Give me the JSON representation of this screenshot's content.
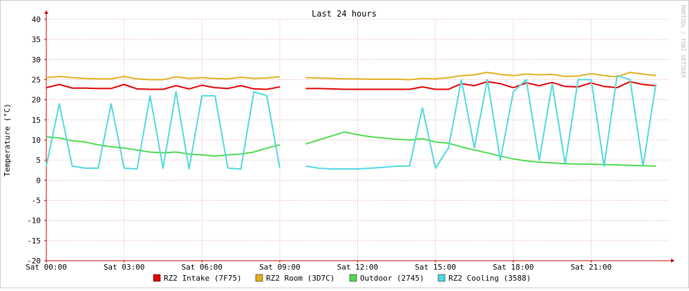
{
  "chart_data": {
    "type": "line",
    "title": "Last 24 hours",
    "y_label": "Temperature (°C)",
    "watermark": "RRDTOOL / TOBI OETIKER",
    "x": [
      0,
      0.5,
      1,
      1.5,
      2,
      2.5,
      3,
      3.5,
      4,
      4.5,
      5,
      5.5,
      6,
      6.5,
      7,
      7.5,
      8,
      8.5,
      9,
      9.5,
      10,
      10.5,
      11,
      11.5,
      12,
      12.5,
      13,
      13.5,
      14,
      14.5,
      15,
      15.5,
      16,
      16.5,
      17,
      17.5,
      18,
      18.5,
      19,
      19.5,
      20,
      20.5,
      21,
      21.5,
      22,
      22.5,
      23,
      23.5
    ],
    "xlim": [
      0,
      24
    ],
    "xticks": [
      {
        "value": 0,
        "label": "Sat 00:00"
      },
      {
        "value": 3,
        "label": "Sat 03:00"
      },
      {
        "value": 6,
        "label": "Sat 06:00"
      },
      {
        "value": 9,
        "label": "Sat 09:00"
      },
      {
        "value": 12,
        "label": "Sat 12:00"
      },
      {
        "value": 15,
        "label": "Sat 15:00"
      },
      {
        "value": 18,
        "label": "Sat 18:00"
      },
      {
        "value": 21,
        "label": "Sat 21:00"
      }
    ],
    "ylim": [
      -20,
      40
    ],
    "yticks": [
      -20,
      -15,
      -10,
      -5,
      0,
      5,
      10,
      15,
      20,
      25,
      30,
      35,
      40
    ],
    "grid": true,
    "series": [
      {
        "name": "RZ2 Intake (7F75)",
        "color": "#e00000",
        "values": [
          23,
          23.8,
          22.9,
          22.9,
          22.8,
          22.8,
          23.8,
          22.7,
          22.6,
          22.6,
          23.5,
          22.7,
          23.6,
          23,
          22.8,
          23.5,
          22.7,
          22.6,
          23.2,
          null,
          22.8,
          22.8,
          22.7,
          22.6,
          22.6,
          22.6,
          22.6,
          22.6,
          22.6,
          23.2,
          22.6,
          22.6,
          24,
          23.5,
          24.5,
          24,
          23,
          24.2,
          23.5,
          24.3,
          23.3,
          23.2,
          24.2,
          23.3,
          23,
          24.5,
          23.8,
          23.5
        ]
      },
      {
        "name": "RZ2 Room (3D7C)",
        "color": "#e0b020",
        "values": [
          25.5,
          25.8,
          25.5,
          25.3,
          25.2,
          25.2,
          25.8,
          25.2,
          25,
          25,
          25.7,
          25.3,
          25.5,
          25.3,
          25.2,
          25.6,
          25.3,
          25.4,
          25.7,
          null,
          25.5,
          25.4,
          25.3,
          25.2,
          25.2,
          25.1,
          25.1,
          25.1,
          25,
          25.3,
          25.2,
          25.5,
          26,
          26.2,
          26.8,
          26.3,
          26,
          26.4,
          26.2,
          26.3,
          25.8,
          25.9,
          26.5,
          26,
          25.7,
          26.8,
          26.4,
          26
        ]
      },
      {
        "name": "Outdoor (2745)",
        "color": "#50d850",
        "values": [
          10.8,
          10.5,
          9.8,
          9.5,
          8.8,
          8.3,
          8,
          7.5,
          7,
          6.8,
          7,
          6.5,
          6.3,
          6,
          6.3,
          6.5,
          7,
          8,
          8.8,
          null,
          9,
          10,
          11,
          12,
          11.3,
          10.8,
          10.5,
          10.2,
          10,
          10.3,
          9.5,
          9.2,
          8.3,
          7.5,
          6.8,
          6,
          5.3,
          4.8,
          4.5,
          4.3,
          4.1,
          4,
          4,
          3.9,
          3.8,
          3.7,
          3.6,
          3.5
        ]
      },
      {
        "name": "RZ2 Cooling (3588)",
        "color": "#50d8e0",
        "values": [
          3.5,
          19,
          3.5,
          3,
          3,
          19,
          3,
          2.8,
          21,
          3,
          22,
          2.8,
          21,
          21,
          3,
          2.8,
          22,
          21,
          3,
          null,
          3.5,
          3,
          2.8,
          2.8,
          2.8,
          3,
          3.2,
          3.5,
          3.5,
          18,
          3,
          8,
          25,
          8,
          25,
          5,
          22,
          25,
          5,
          24,
          4,
          25,
          25,
          3.5,
          26,
          25,
          3.5,
          24
        ]
      }
    ]
  }
}
